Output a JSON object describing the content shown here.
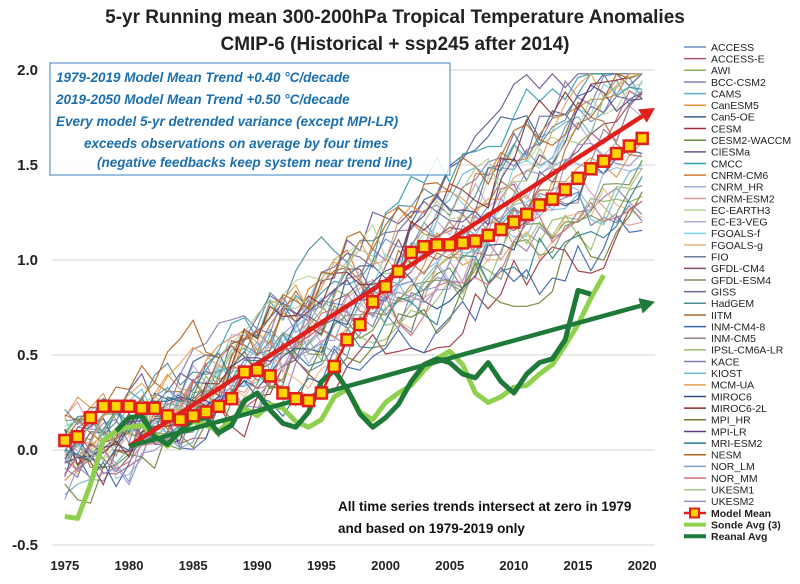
{
  "chart_data": {
    "type": "line",
    "title": "5-yr Running mean 300-200hPa Tropical Temperature Anomalies",
    "subtitle": "CMIP-6 (Historical + ssp245 after 2014)",
    "xlim": [
      1974,
      2021
    ],
    "ylim": [
      -0.5,
      2.0
    ],
    "xticks": [
      1975,
      1980,
      1985,
      1990,
      1995,
      2000,
      2005,
      2010,
      2015,
      2020
    ],
    "yticks": [
      "-0.5",
      "0.0",
      "0.5",
      "1.0",
      "1.5",
      "2.0"
    ],
    "grid": true,
    "legend_position": "right",
    "annotation_box": [
      "1979-2019 Model Mean Trend +0.40 °C/decade",
      "2019-2050 Model Mean Trend +0.50 °C/decade",
      "Every model 5-yr detrended variance (except MPI-LR)",
      "exceeds observations on average by four times",
      "(negative feedbacks keep system near trend line)"
    ],
    "footnote": [
      "All time series trends intersect at zero in 1979",
      "and based on 1979-2019 only"
    ],
    "model_names": [
      "ACCESS",
      "ACCESS-E",
      "AWI",
      "BCC-CSM2",
      "CAMS",
      "CanESM5",
      "Can5-OE",
      "CESM",
      "CESM2-WACCM",
      "CIESMa",
      "CMCC",
      "CNRM-CM6",
      "CNRM_HR",
      "CNRM-ESM2",
      "EC-EARTH3",
      "EC-E3-VEG",
      "FGOALS-f",
      "FGOALS-g",
      "FIO",
      "GFDL-CM4",
      "GFDL-ESM4",
      "GISS",
      "HadGEM",
      "IITM",
      "INM-CM4-8",
      "INM-CM5",
      "IPSL-CM6A-LR",
      "KACE",
      "KIOST",
      "MCM-UA",
      "MIROC6",
      "MIROC6-2L",
      "MPI_HR",
      "MPI-LR",
      "MRI-ESM2",
      "NESM",
      "NOR_LM",
      "NOR_MM",
      "UKESM1",
      "UKESM2"
    ],
    "model_colors": [
      "#6f8fc4",
      "#b0546a",
      "#8ab35a",
      "#8e7ab7",
      "#5fb0c9",
      "#e3923f",
      "#3d5c8f",
      "#9c2f3a",
      "#6e8a3a",
      "#6b5090",
      "#2f9aaa",
      "#cf7b2e",
      "#9cb2da",
      "#d79ba5",
      "#b9d399",
      "#b6a8d2",
      "#7fd0e3",
      "#f2b878",
      "#6e7e9e",
      "#8c4d56",
      "#7d9459",
      "#6f6394",
      "#4e8a96",
      "#b06a2c",
      "#3b64a8",
      "#9c7c8c",
      "#9bbd6c",
      "#847aa8",
      "#6cbfd1",
      "#e79e55",
      "#2e4d80",
      "#8b2a2e",
      "#6b7d32",
      "#5a3e80",
      "#297f8e",
      "#b0621c",
      "#7f9fd0",
      "#d0707c",
      "#a9c98e",
      "#9d8fc4"
    ],
    "series": [
      {
        "name": "Model Mean",
        "x": [
          1975,
          1976,
          1977,
          1978,
          1979,
          1980,
          1981,
          1982,
          1983,
          1984,
          1985,
          1986,
          1987,
          1988,
          1989,
          1990,
          1991,
          1992,
          1993,
          1994,
          1995,
          1996,
          1997,
          1998,
          1999,
          2000,
          2001,
          2002,
          2003,
          2004,
          2005,
          2006,
          2007,
          2008,
          2009,
          2010,
          2011,
          2012,
          2013,
          2014,
          2015,
          2016,
          2017,
          2018,
          2019,
          2020
        ],
        "y": [
          0.05,
          0.07,
          0.17,
          0.23,
          0.23,
          0.23,
          0.22,
          0.22,
          0.18,
          0.16,
          0.18,
          0.2,
          0.23,
          0.27,
          0.41,
          0.42,
          0.39,
          0.3,
          0.27,
          0.26,
          0.3,
          0.44,
          0.58,
          0.66,
          0.78,
          0.86,
          0.94,
          1.04,
          1.07,
          1.08,
          1.08,
          1.09,
          1.1,
          1.13,
          1.16,
          1.2,
          1.24,
          1.29,
          1.32,
          1.37,
          1.43,
          1.48,
          1.52,
          1.56,
          1.6,
          1.64
        ]
      },
      {
        "name": "Sonde Avg (3)",
        "x": [
          1975,
          1976,
          1977,
          1978,
          1979,
          1980,
          1981,
          1982,
          1983,
          1984,
          1985,
          1986,
          1987,
          1988,
          1989,
          1990,
          1991,
          1992,
          1993,
          1994,
          1995,
          1996,
          1997,
          1998,
          1999,
          2000,
          2001,
          2002,
          2003,
          2004,
          2005,
          2006,
          2007,
          2008,
          2009,
          2010,
          2011,
          2012,
          2013,
          2014,
          2015,
          2016,
          2017
        ],
        "y": [
          -0.35,
          -0.36,
          -0.18,
          0.05,
          0.1,
          0.12,
          0.13,
          0.08,
          0.02,
          0.1,
          0.15,
          0.13,
          0.1,
          0.16,
          0.22,
          0.18,
          0.24,
          0.22,
          0.15,
          0.12,
          0.16,
          0.28,
          0.32,
          0.2,
          0.16,
          0.25,
          0.3,
          0.34,
          0.42,
          0.48,
          0.52,
          0.45,
          0.3,
          0.25,
          0.28,
          0.33,
          0.34,
          0.4,
          0.45,
          0.55,
          0.66,
          0.8,
          0.92
        ]
      },
      {
        "name": "Reanal Avg",
        "x": [
          1979,
          1980,
          1981,
          1982,
          1983,
          1984,
          1985,
          1986,
          1987,
          1988,
          1989,
          1990,
          1991,
          1992,
          1993,
          1994,
          1995,
          1996,
          1997,
          1998,
          1999,
          2000,
          2001,
          2002,
          2003,
          2004,
          2005,
          2006,
          2007,
          2008,
          2009,
          2010,
          2011,
          2012,
          2013,
          2014,
          2015,
          2016
        ],
        "y": [
          0.1,
          0.17,
          0.18,
          0.07,
          0.03,
          0.1,
          0.16,
          0.17,
          0.09,
          0.13,
          0.26,
          0.3,
          0.21,
          0.14,
          0.12,
          0.2,
          0.36,
          0.42,
          0.32,
          0.19,
          0.12,
          0.17,
          0.24,
          0.36,
          0.45,
          0.48,
          0.46,
          0.4,
          0.38,
          0.46,
          0.36,
          0.3,
          0.4,
          0.46,
          0.48,
          0.58,
          0.84,
          0.82
        ]
      }
    ],
    "trend_arrows": [
      {
        "color": "#e0201c",
        "from": [
          1980,
          0.02
        ],
        "to": [
          2021,
          1.8
        ]
      },
      {
        "color": "#1f7a3a",
        "from": [
          1980,
          0.02
        ],
        "to": [
          2021,
          0.78
        ]
      }
    ],
    "legend": [
      "ACCESS",
      "ACCESS-E",
      "AWI",
      "BCC-CSM2",
      "CAMS",
      "CanESM5",
      "Can5-OE",
      "CESM",
      "CESM2-WACCM",
      "CIESMa",
      "CMCC",
      "CNRM-CM6",
      "CNRM_HR",
      "CNRM-ESM2",
      "EC-EARTH3",
      "EC-E3-VEG",
      "FGOALS-f",
      "FGOALS-g",
      "FIO",
      "GFDL-CM4",
      "GFDL-ESM4",
      "GISS",
      "HadGEM",
      "IITM",
      "INM-CM4-8",
      "INM-CM5",
      "IPSL-CM6A-LR",
      "KACE",
      "KIOST",
      "MCM-UA",
      "MIROC6",
      "MIROC6-2L",
      "MPI_HR",
      "MPI-LR",
      "MRI-ESM2",
      "NESM",
      "NOR_LM",
      "NOR_MM",
      "UKESM1",
      "UKESM2",
      "Model Mean",
      "Sonde Avg (3)",
      "Reanal Avg"
    ],
    "colors": {
      "model_mean": "#e0201c",
      "marker_fill": "#ffd400",
      "sonde": "#8fd14f",
      "reanal": "#1f7a3a",
      "note_text": "#1c6fae"
    }
  }
}
